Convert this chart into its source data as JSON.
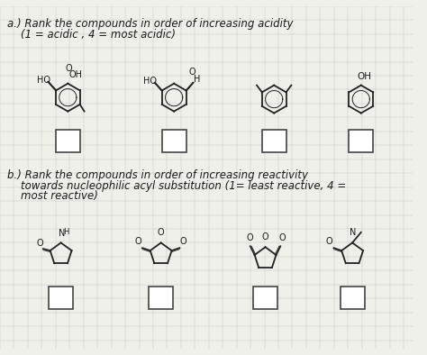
{
  "background_color": "#f0f0eb",
  "grid_color": "#c8c8c0",
  "text_color": "#1a1a1a",
  "line_color": "#222222",
  "font_size": 8.5,
  "box_color": "#ffffff",
  "box_edge": "#444444",
  "title_a1": "a.) Rank the compounds in order of increasing acidity",
  "title_a2": "    (1 = acidic , 4 = most acidic)",
  "title_b1": "b.) Rank the compounds in order of increasing reactivity",
  "title_b2": "    towards nucleophilic acyl substitution (1= least reactive, 4 =",
  "title_b3": "    most reactive)"
}
